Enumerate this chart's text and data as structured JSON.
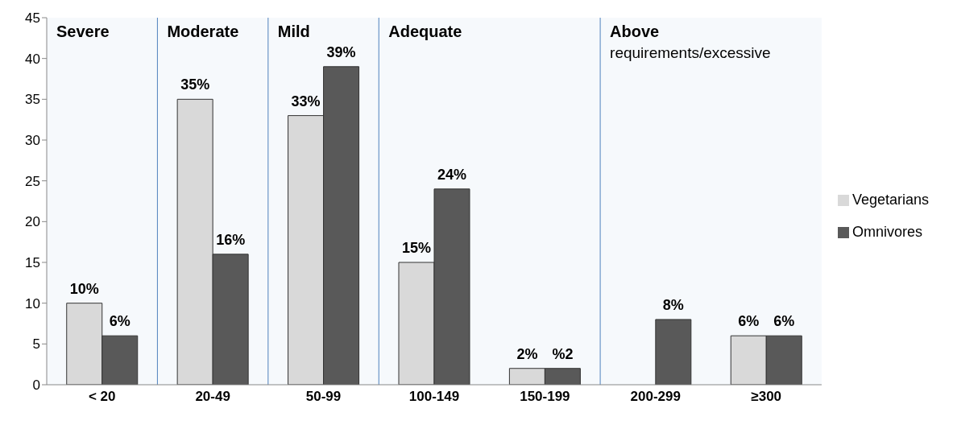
{
  "chart_data": {
    "type": "bar",
    "categories": [
      "< 20",
      "20-49",
      "50-99",
      "100-149",
      "150-199",
      "200-299",
      "≥300"
    ],
    "series": [
      {
        "name": "Vegetarians",
        "color": "#d9d9d9",
        "values": [
          10,
          35,
          33,
          15,
          2,
          null,
          6
        ],
        "value_labels": [
          "10%",
          "35%",
          "33%",
          "15%",
          "2%",
          null,
          "6%"
        ]
      },
      {
        "name": "Omnivores",
        "color": "#595959",
        "values": [
          6,
          16,
          39,
          24,
          2,
          8,
          6
        ],
        "value_labels": [
          "6%",
          "16%",
          "39%",
          "24%",
          "%2",
          "8%",
          "6%"
        ]
      }
    ],
    "ylim": [
      0,
      45
    ],
    "yticks": [
      0,
      5,
      10,
      15,
      20,
      25,
      30,
      35,
      40,
      45
    ],
    "grid": false,
    "legend": "right",
    "bands": [
      {
        "axis": "x",
        "from": "< 20",
        "to": "< 20",
        "label": "Severe",
        "color": "#4f81bd"
      },
      {
        "axis": "x",
        "from": "20-49",
        "to": "20-49",
        "label": "Moderate",
        "color": "#4f81bd"
      },
      {
        "axis": "x",
        "from": "50-99",
        "to": "50-99",
        "label": "Mild",
        "color": "#4f81bd"
      },
      {
        "axis": "x",
        "from": "100-149",
        "to": "150-199",
        "label": "Adequate",
        "color": "#4f81bd"
      },
      {
        "axis": "x",
        "from": "200-299",
        "to": "≥300",
        "label": "Above requirements/excessive",
        "color": "#4f81bd"
      }
    ]
  }
}
